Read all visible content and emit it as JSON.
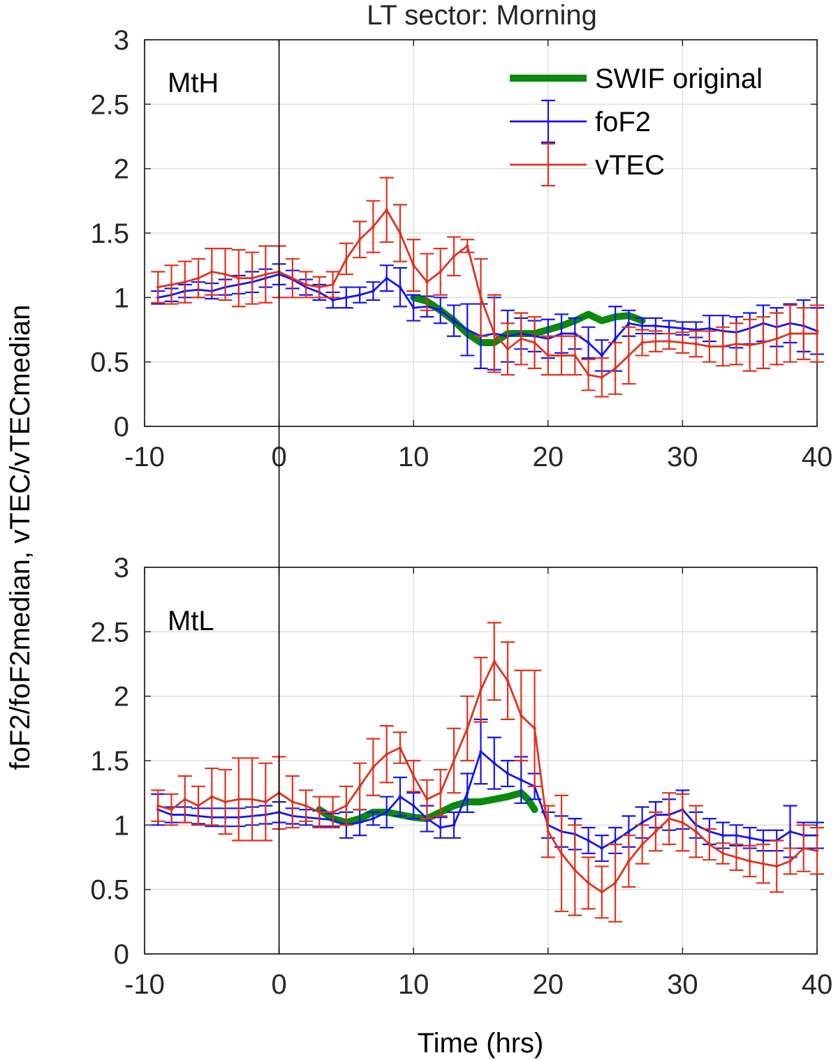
{
  "chart_data": {
    "type": "line",
    "title": "LT sector: Morning",
    "xlabel": "Time (hrs)",
    "ylabel": "foF2/foF2median, vTEC/vTECmedian",
    "xlim": [
      -10,
      40
    ],
    "ylim": [
      0,
      3
    ],
    "x_ticks": [
      "-10",
      "0",
      "10",
      "20",
      "30",
      "40"
    ],
    "y_ticks": [
      "0",
      "0.5",
      "1",
      "1.5",
      "2",
      "2.5",
      "3"
    ],
    "grid": true,
    "event_marker_x": 0,
    "legend": {
      "placement": "top-right",
      "entries": [
        "SWIF original",
        "foF2",
        "vTEC"
      ]
    },
    "colors": {
      "swif": "#0a8a0a",
      "foF2": "#1414f0",
      "vTEC": "#e0321e",
      "grid": "#dedede"
    },
    "panels": [
      {
        "label": "MtH",
        "series": [
          {
            "name": "SWIF original",
            "x": [
              10,
              11,
              12,
              13,
              14,
              15,
              16,
              17,
              18,
              19,
              20,
              21,
              22,
              23,
              24,
              25,
              26,
              27
            ],
            "y": [
              1.0,
              0.97,
              0.9,
              0.82,
              0.72,
              0.65,
              0.65,
              0.72,
              0.72,
              0.72,
              0.75,
              0.78,
              0.82,
              0.87,
              0.82,
              0.85,
              0.86,
              0.82
            ]
          },
          {
            "name": "foF2",
            "x": [
              -9,
              -8,
              -7,
              -6,
              -5,
              -4,
              -3,
              -2,
              -1,
              0,
              1,
              2,
              3,
              4,
              5,
              6,
              7,
              8,
              9,
              10,
              11,
              12,
              13,
              14,
              15,
              16,
              17,
              18,
              19,
              20,
              21,
              22,
              23,
              24,
              25,
              26,
              27,
              28,
              29,
              30,
              31,
              32,
              33,
              34,
              35,
              36,
              37,
              38,
              39,
              40
            ],
            "y": [
              1.0,
              1.02,
              1.05,
              1.06,
              1.05,
              1.08,
              1.1,
              1.12,
              1.15,
              1.18,
              1.14,
              1.08,
              1.04,
              0.98,
              1.0,
              1.02,
              1.05,
              1.15,
              1.08,
              0.92,
              0.93,
              0.9,
              0.82,
              0.75,
              0.7,
              0.72,
              0.7,
              0.72,
              0.7,
              0.68,
              0.72,
              0.72,
              0.65,
              0.55,
              0.68,
              0.8,
              0.78,
              0.78,
              0.77,
              0.76,
              0.75,
              0.76,
              0.74,
              0.73,
              0.76,
              0.8,
              0.77,
              0.8,
              0.78,
              0.74
            ],
            "err": [
              0.05,
              0.05,
              0.05,
              0.06,
              0.06,
              0.06,
              0.07,
              0.08,
              0.07,
              0.08,
              0.07,
              0.06,
              0.06,
              0.06,
              0.08,
              0.06,
              0.07,
              0.1,
              0.15,
              0.1,
              0.08,
              0.1,
              0.12,
              0.2,
              0.25,
              0.28,
              0.2,
              0.12,
              0.12,
              0.15,
              0.15,
              0.12,
              0.12,
              0.12,
              0.25,
              0.1,
              0.06,
              0.06,
              0.05,
              0.05,
              0.06,
              0.1,
              0.12,
              0.12,
              0.12,
              0.14,
              0.15,
              0.15,
              0.2,
              0.18
            ]
          },
          {
            "name": "vTEC",
            "x": [
              -9,
              -8,
              -7,
              -6,
              -5,
              -4,
              -3,
              -2,
              -1,
              0,
              1,
              2,
              3,
              4,
              5,
              6,
              7,
              8,
              9,
              10,
              11,
              12,
              13,
              14,
              15,
              16,
              17,
              18,
              19,
              20,
              21,
              22,
              23,
              24,
              25,
              26,
              27,
              28,
              29,
              30,
              31,
              32,
              33,
              34,
              35,
              36,
              37,
              38,
              39,
              40
            ],
            "y": [
              1.08,
              1.1,
              1.12,
              1.15,
              1.2,
              1.18,
              1.15,
              1.15,
              1.18,
              1.2,
              1.15,
              1.1,
              1.08,
              1.1,
              1.3,
              1.45,
              1.55,
              1.68,
              1.5,
              1.25,
              1.12,
              1.2,
              1.32,
              1.4,
              1.0,
              0.72,
              0.6,
              0.68,
              0.65,
              0.55,
              0.55,
              0.55,
              0.4,
              0.38,
              0.45,
              0.55,
              0.65,
              0.66,
              0.66,
              0.65,
              0.64,
              0.62,
              0.62,
              0.64,
              0.63,
              0.65,
              0.68,
              0.72,
              0.72,
              0.72
            ],
            "err": [
              0.12,
              0.15,
              0.16,
              0.15,
              0.18,
              0.2,
              0.22,
              0.2,
              0.22,
              0.2,
              0.15,
              0.1,
              0.08,
              0.1,
              0.12,
              0.14,
              0.2,
              0.25,
              0.22,
              0.2,
              0.22,
              0.18,
              0.15,
              0.05,
              0.3,
              0.3,
              0.2,
              0.2,
              0.2,
              0.15,
              0.15,
              0.15,
              0.12,
              0.15,
              0.2,
              0.22,
              0.1,
              0.08,
              0.06,
              0.08,
              0.1,
              0.12,
              0.15,
              0.16,
              0.2,
              0.2,
              0.2,
              0.22,
              0.2,
              0.22
            ]
          }
        ]
      },
      {
        "label": "MtL",
        "series": [
          {
            "name": "SWIF original",
            "x": [
              3,
              4,
              5,
              6,
              7,
              8,
              9,
              10,
              11,
              12,
              13,
              14,
              15,
              16,
              17,
              18,
              18.5,
              19
            ],
            "y": [
              1.12,
              1.05,
              1.02,
              1.05,
              1.1,
              1.1,
              1.08,
              1.06,
              1.05,
              1.1,
              1.15,
              1.18,
              1.18,
              1.2,
              1.22,
              1.25,
              1.2,
              1.12
            ]
          },
          {
            "name": "foF2",
            "x": [
              -9,
              -8,
              -7,
              -6,
              -5,
              -4,
              -3,
              -2,
              -1,
              0,
              1,
              2,
              3,
              4,
              5,
              6,
              7,
              8,
              9,
              10,
              11,
              12,
              13,
              14,
              15,
              16,
              17,
              18,
              19,
              20,
              21,
              22,
              23,
              24,
              25,
              26,
              27,
              28,
              29,
              30,
              31,
              32,
              33,
              34,
              35,
              36,
              37,
              38,
              39,
              40
            ],
            "y": [
              1.12,
              1.08,
              1.08,
              1.07,
              1.06,
              1.06,
              1.06,
              1.07,
              1.08,
              1.1,
              1.07,
              1.06,
              1.05,
              1.04,
              1.0,
              1.02,
              1.05,
              1.1,
              1.22,
              1.15,
              1.05,
              0.98,
              1.0,
              1.25,
              1.57,
              1.48,
              1.4,
              1.35,
              1.3,
              1.0,
              0.95,
              0.93,
              0.88,
              0.82,
              0.88,
              0.95,
              1.02,
              1.08,
              1.08,
              1.12,
              1.0,
              0.95,
              0.92,
              0.92,
              0.9,
              0.88,
              0.88,
              0.95,
              0.92,
              0.92
            ],
            "err": [
              0.12,
              0.06,
              0.06,
              0.06,
              0.07,
              0.07,
              0.07,
              0.07,
              0.07,
              0.08,
              0.06,
              0.06,
              0.06,
              0.05,
              0.1,
              0.1,
              0.05,
              0.12,
              0.15,
              0.1,
              0.1,
              0.08,
              0.1,
              0.15,
              0.25,
              0.2,
              0.1,
              0.18,
              0.1,
              0.1,
              0.12,
              0.12,
              0.1,
              0.1,
              0.1,
              0.12,
              0.12,
              0.1,
              0.12,
              0.15,
              0.1,
              0.1,
              0.1,
              0.08,
              0.08,
              0.08,
              0.08,
              0.2,
              0.1,
              0.1
            ]
          },
          {
            "name": "vTEC",
            "x": [
              -9,
              -8,
              -7,
              -6,
              -5,
              -4,
              -3,
              -2,
              -1,
              0,
              1,
              2,
              3,
              4,
              5,
              6,
              7,
              8,
              9,
              10,
              11,
              12,
              13,
              14,
              15,
              16,
              17,
              18,
              19,
              20,
              21,
              22,
              23,
              24,
              25,
              26,
              27,
              28,
              29,
              30,
              31,
              32,
              33,
              34,
              35,
              36,
              37,
              38,
              39,
              40
            ],
            "y": [
              1.15,
              1.12,
              1.2,
              1.15,
              1.22,
              1.18,
              1.2,
              1.2,
              1.18,
              1.25,
              1.18,
              1.15,
              1.1,
              1.1,
              1.15,
              1.3,
              1.45,
              1.55,
              1.6,
              1.38,
              1.2,
              1.25,
              1.5,
              1.75,
              2.05,
              2.27,
              2.12,
              1.85,
              1.75,
              0.95,
              0.78,
              0.65,
              0.55,
              0.48,
              0.55,
              0.72,
              0.85,
              0.95,
              1.05,
              1.02,
              0.95,
              0.85,
              0.78,
              0.75,
              0.72,
              0.7,
              0.68,
              0.72,
              0.82,
              0.8
            ],
            "err": [
              0.12,
              0.12,
              0.18,
              0.15,
              0.22,
              0.25,
              0.32,
              0.32,
              0.3,
              0.28,
              0.2,
              0.12,
              0.12,
              0.12,
              0.15,
              0.18,
              0.22,
              0.22,
              0.12,
              0.12,
              0.15,
              0.18,
              0.25,
              0.25,
              0.25,
              0.3,
              0.3,
              0.35,
              0.45,
              0.2,
              0.45,
              0.35,
              0.2,
              0.2,
              0.3,
              0.2,
              0.15,
              0.15,
              0.2,
              0.22,
              0.2,
              0.12,
              0.08,
              0.1,
              0.12,
              0.15,
              0.2,
              0.1,
              0.18,
              0.18
            ]
          }
        ]
      }
    ]
  }
}
